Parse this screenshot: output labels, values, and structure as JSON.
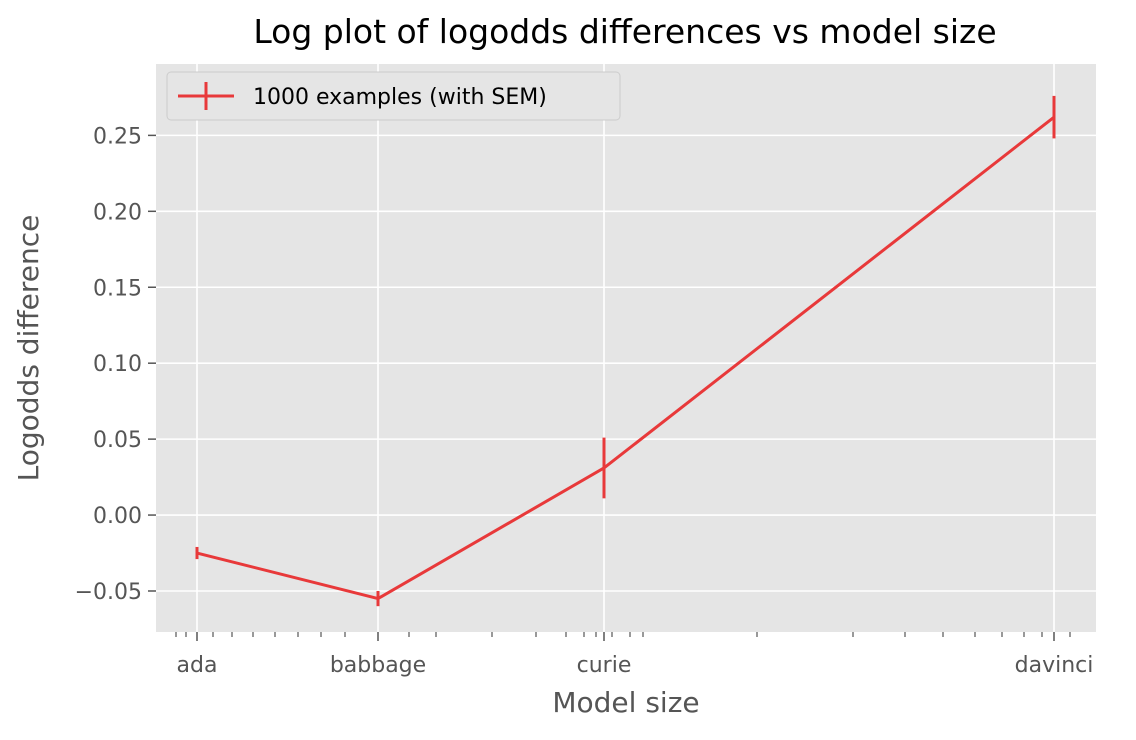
{
  "chart_data": {
    "type": "line",
    "title": "Log plot of logodds differences vs model size",
    "xlabel": "Model size",
    "ylabel": "Logodds difference",
    "x_scale": "log",
    "categories": [
      "ada",
      "babbage",
      "curie",
      "davinci"
    ],
    "ylim": [
      -0.077,
      0.297
    ],
    "y_ticks": [
      -0.05,
      0.0,
      0.05,
      0.1,
      0.15,
      0.2,
      0.25
    ],
    "y_tick_labels": [
      "−0.05",
      "0.00",
      "0.05",
      "0.10",
      "0.15",
      "0.20",
      "0.25"
    ],
    "grid": true,
    "legend_position": "top-left",
    "series": [
      {
        "name": "1000 examples (with SEM)",
        "color": "#e8393a",
        "values": [
          -0.025,
          -0.055,
          0.031,
          0.262
        ],
        "sem": [
          0.004,
          0.005,
          0.02,
          0.014
        ]
      }
    ]
  }
}
